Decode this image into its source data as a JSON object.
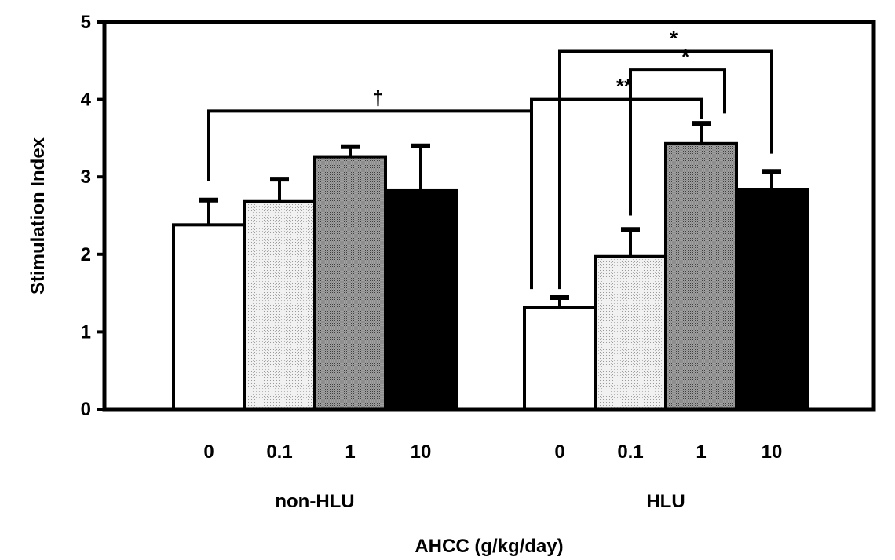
{
  "chart_data": {
    "type": "bar",
    "xlabel": "AHCC (g/kg/day)",
    "ylabel": "Stimulation Index",
    "ylim": [
      0,
      5
    ],
    "yticks": [
      "0",
      "1",
      "2",
      "3",
      "4",
      "5"
    ],
    "grid": false,
    "groups": [
      {
        "label": "non-HLU",
        "bars": [
          {
            "category": "0",
            "value": 2.38,
            "error": 0.32,
            "fill": "white"
          },
          {
            "category": "0.1",
            "value": 2.68,
            "error": 0.29,
            "fill": "light-dotted"
          },
          {
            "category": "1",
            "value": 3.26,
            "error": 0.13,
            "fill": "gray-dotted"
          },
          {
            "category": "10",
            "value": 2.82,
            "error": 0.58,
            "fill": "black"
          }
        ]
      },
      {
        "label": "HLU",
        "bars": [
          {
            "category": "0",
            "value": 1.31,
            "error": 0.13,
            "fill": "white"
          },
          {
            "category": "0.1",
            "value": 1.97,
            "error": 0.35,
            "fill": "light-dotted"
          },
          {
            "category": "1",
            "value": 3.43,
            "error": 0.26,
            "fill": "gray-dotted"
          },
          {
            "category": "10",
            "value": 2.83,
            "error": 0.24,
            "fill": "black"
          }
        ]
      }
    ],
    "annotations": [
      {
        "symbol": "†",
        "from": {
          "group": 0,
          "bar": 0
        },
        "to": {
          "group": 1,
          "bar": 0
        }
      },
      {
        "symbol": "**",
        "from": {
          "group": 1,
          "bar": 0
        },
        "to": {
          "group": 1,
          "bar": 2
        }
      },
      {
        "symbol": "*",
        "from": {
          "group": 1,
          "bar": 1
        },
        "to": {
          "group": 1,
          "bar": 2
        }
      },
      {
        "symbol": "*",
        "from": {
          "group": 1,
          "bar": 0
        },
        "to": {
          "group": 1,
          "bar": 3
        }
      }
    ],
    "colors": {
      "white": "#ffffff",
      "light": "#e6e6e6",
      "gray": "#8e8e8e",
      "black": "#000000"
    }
  }
}
